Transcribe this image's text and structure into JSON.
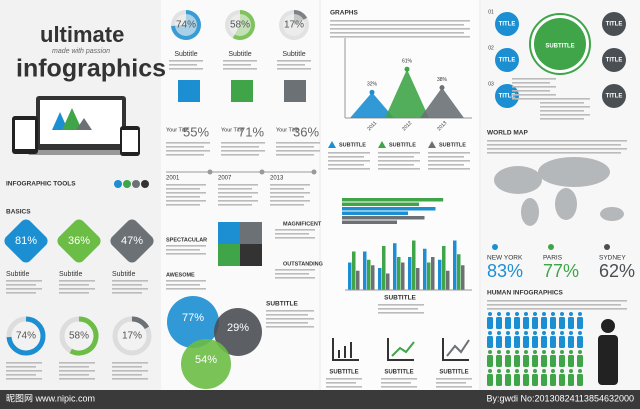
{
  "header": {
    "title1": "ultimate",
    "tagline": "made with passion",
    "title2": "infographics"
  },
  "tools": {
    "title": "INFOGRAPHIC TOOLS",
    "basics": "BASICS"
  },
  "diamonds": [
    {
      "label": "81%",
      "color": "#1b8fd2",
      "subtitle": "Subtitle"
    },
    {
      "label": "36%",
      "color": "#6cbd45",
      "subtitle": "Subtitle"
    },
    {
      "label": "47%",
      "color": "#6b7175",
      "subtitle": "Subtitle"
    }
  ],
  "donuts": [
    {
      "value": 74,
      "label": "74%",
      "color": "#1b8fd2"
    },
    {
      "value": 58,
      "label": "58%",
      "color": "#6cbd45"
    },
    {
      "value": 17,
      "label": "17%",
      "color": "#6b7175"
    }
  ],
  "pies": [
    {
      "value": 74,
      "label": "74%",
      "color": "#1b8fd2",
      "subtitle": "Subtitle"
    },
    {
      "value": 58,
      "label": "58%",
      "color": "#6cbd45",
      "subtitle": "Subtitle"
    },
    {
      "value": 17,
      "label": "17%",
      "color": "#6b7175",
      "subtitle": "Subtitle"
    }
  ],
  "your_title": [
    {
      "title": "Your Title",
      "label": "55%"
    },
    {
      "title": "Your Title",
      "label": "71%"
    },
    {
      "title": "Your Title",
      "label": "36%"
    }
  ],
  "timeline": [
    "2001",
    "2007",
    "2013"
  ],
  "puzzle_labels": {
    "spectacular": "SPECTACULAR",
    "awesome": "AWESOME",
    "magnificent": "MAGNIFICENT",
    "outstanding": "OUTSTANDING"
  },
  "venn": {
    "subtitle": "SUBTITLE",
    "circles": [
      {
        "label": "77%",
        "color": "#1b8fd2"
      },
      {
        "label": "29%",
        "color": "#4a4f53"
      },
      {
        "label": "54%",
        "color": "#6cbd45"
      }
    ]
  },
  "graphs": {
    "title": "GRAPHS",
    "ylim": [
      0,
      100
    ],
    "categories": [
      "2011",
      "2012",
      "2013"
    ],
    "values": [
      32,
      61,
      38
    ],
    "value_labels": [
      "32%",
      "61%",
      "38%"
    ],
    "colors": [
      "#1b8fd2",
      "#3fa548",
      "#6b7175"
    ],
    "subtitles": [
      "SUBTITLE",
      "SUBTITLE",
      "SUBTITLE"
    ]
  },
  "hbars": {
    "xlim": [
      0,
      100
    ],
    "series": [
      {
        "color": "#3fa548",
        "values": [
          92,
          70
        ]
      },
      {
        "color": "#1b8fd2",
        "values": [
          85,
          60
        ]
      },
      {
        "color": "#6b7175",
        "values": [
          75,
          50
        ]
      }
    ]
  },
  "grouped_bars": {
    "ylim": [
      0,
      100
    ],
    "subtitle": "SUBTITLE",
    "series": [
      {
        "color": "#1b8fd2",
        "values": [
          50,
          70,
          40,
          85,
          60,
          75,
          55,
          90
        ]
      },
      {
        "color": "#3fa548",
        "values": [
          70,
          55,
          80,
          60,
          90,
          50,
          80,
          65
        ]
      },
      {
        "color": "#6b7175",
        "values": [
          35,
          45,
          30,
          50,
          40,
          60,
          35,
          45
        ]
      }
    ]
  },
  "icons": {
    "subtitles": [
      "SUBTITLE",
      "SUBTITLE",
      "SUBTITLE"
    ]
  },
  "titles": {
    "left": [
      {
        "title": "TITLE",
        "num": "01"
      },
      {
        "title": "TITLE",
        "num": "02"
      },
      {
        "title": "TITLE",
        "num": "03"
      }
    ],
    "center": "SUBTITLE",
    "right": [
      "TITLE",
      "TITLE",
      "TITLE"
    ]
  },
  "world": {
    "title": "WORLD MAP",
    "cities": [
      {
        "name": "NEW YORK",
        "label": "83%",
        "color": "#1b8fd2"
      },
      {
        "name": "PARIS",
        "label": "77%",
        "color": "#3fa548"
      },
      {
        "name": "SYDNEY",
        "label": "62%",
        "color": "#4a4f53"
      }
    ]
  },
  "human": {
    "title": "HUMAN INFOGRAPHICS"
  },
  "watermark": {
    "left": "昵图网 www.nipic.com",
    "right": "By:gwdi No:20130824113854632000"
  }
}
